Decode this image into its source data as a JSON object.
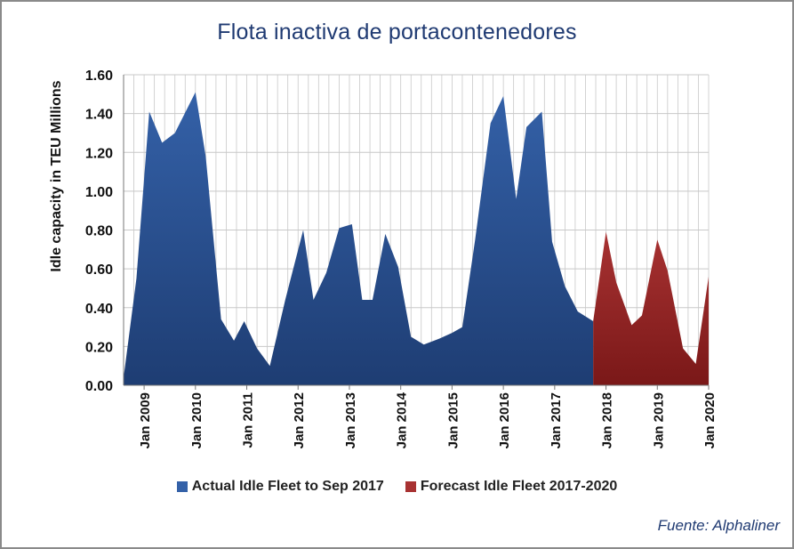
{
  "title": "Flota inactiva de portacontenedores",
  "source": "Fuente: Alphaliner",
  "colors": {
    "actual": "#3461a8",
    "actual_dark": "#1e3d73",
    "forecast": "#a83232",
    "forecast_dark": "#7a1818",
    "grid": "#c8c8c8"
  },
  "chart_data": {
    "type": "area",
    "title": "Flota inactiva de portacontenedores",
    "ylabel": "Idle capacity in TEU Millions",
    "xlabel": "",
    "ylim": [
      0,
      1.6
    ],
    "y_ticks": [
      "0.00",
      "0.20",
      "0.40",
      "0.60",
      "0.80",
      "1.00",
      "1.20",
      "1.40",
      "1.60"
    ],
    "x_range": [
      2008.6,
      2020.0
    ],
    "x_ticks": [
      {
        "x": 2009,
        "label": "Jan 2009"
      },
      {
        "x": 2010,
        "label": "Jan 2010"
      },
      {
        "x": 2011,
        "label": "Jan 2011"
      },
      {
        "x": 2012,
        "label": "Jan 2012"
      },
      {
        "x": 2013,
        "label": "Jan 2013"
      },
      {
        "x": 2014,
        "label": "Jan 2014"
      },
      {
        "x": 2015,
        "label": "Jan 2015"
      },
      {
        "x": 2016,
        "label": "Jan 2016"
      },
      {
        "x": 2017,
        "label": "Jan 2017"
      },
      {
        "x": 2018,
        "label": "Jan 2018"
      },
      {
        "x": 2019,
        "label": "Jan 2019"
      },
      {
        "x": 2020,
        "label": "Jan 2020"
      }
    ],
    "grid": true,
    "legend_position": "bottom",
    "series": [
      {
        "name": "Actual Idle Fleet to Sep 2017",
        "color": "#3461a8",
        "x": [
          2008.6,
          2008.85,
          2009.1,
          2009.35,
          2009.6,
          2010.0,
          2010.2,
          2010.5,
          2010.75,
          2010.95,
          2011.2,
          2011.45,
          2011.75,
          2012.1,
          2012.3,
          2012.55,
          2012.8,
          2013.05,
          2013.25,
          2013.45,
          2013.7,
          2013.95,
          2014.2,
          2014.45,
          2014.75,
          2015.0,
          2015.2,
          2015.45,
          2015.75,
          2016.0,
          2016.25,
          2016.45,
          2016.75,
          2016.95,
          2017.2,
          2017.45,
          2017.75
        ],
        "y": [
          0.04,
          0.55,
          1.41,
          1.25,
          1.3,
          1.51,
          1.18,
          0.34,
          0.23,
          0.33,
          0.19,
          0.1,
          0.44,
          0.8,
          0.44,
          0.58,
          0.81,
          0.83,
          0.44,
          0.44,
          0.78,
          0.61,
          0.25,
          0.21,
          0.24,
          0.27,
          0.3,
          0.75,
          1.35,
          1.49,
          0.96,
          1.33,
          1.41,
          0.74,
          0.51,
          0.38,
          0.33
        ]
      },
      {
        "name": "Forecast Idle Fleet 2017-2020",
        "color": "#a83232",
        "x": [
          2017.75,
          2018.0,
          2018.2,
          2018.5,
          2018.7,
          2019.0,
          2019.2,
          2019.5,
          2019.75,
          2020.0
        ],
        "y": [
          0.33,
          0.79,
          0.53,
          0.31,
          0.36,
          0.75,
          0.59,
          0.19,
          0.11,
          0.56
        ]
      }
    ]
  }
}
